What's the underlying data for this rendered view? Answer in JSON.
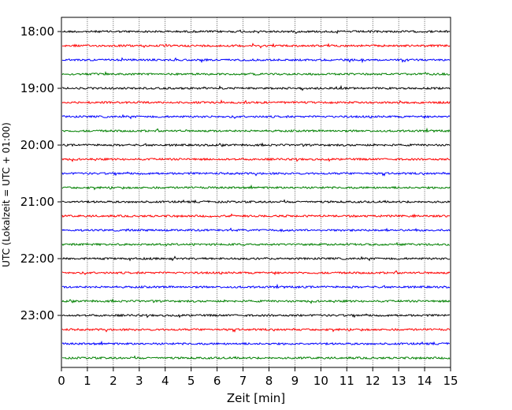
{
  "chart_data": {
    "type": "line",
    "title": "",
    "xlabel": "Zeit  [min]",
    "ylabel": "UTC (Lokalzeit = UTC + 01:00)",
    "xlim": [
      0,
      15
    ],
    "x_ticks": [
      0,
      1,
      2,
      3,
      4,
      5,
      6,
      7,
      8,
      9,
      10,
      11,
      12,
      13,
      14,
      15
    ],
    "y_tick_labels": [
      "18:00",
      "19:00",
      "20:00",
      "21:00",
      "22:00",
      "23:00"
    ],
    "grid": "vertical dotted lines at each minute",
    "start_time": "18:00",
    "trace_interval_minutes": 15,
    "trace_count": 24,
    "trace_colors": [
      "#000000",
      "#ff0000",
      "#0000ff",
      "#008000"
    ],
    "note": "seismogram helicorder: each trace is 15 minutes of low-amplitude noise"
  }
}
